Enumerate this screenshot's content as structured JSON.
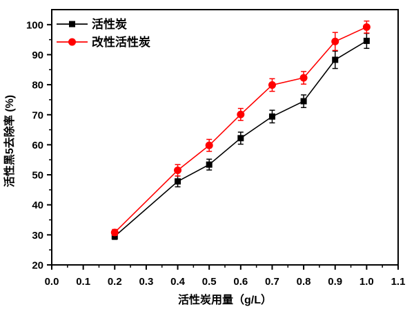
{
  "figure": {
    "background": "#ffffff",
    "frame_color": "#000000"
  },
  "chart_data": {
    "type": "line",
    "title": "",
    "xlabel": "活性炭用量（g/L）",
    "ylabel": "活性黑5去除率 (%)",
    "xlim": [
      0.0,
      1.1
    ],
    "ylim": [
      20,
      105
    ],
    "grid": false,
    "xticks": [
      0.0,
      0.1,
      0.2,
      0.3,
      0.4,
      0.5,
      0.6,
      0.7,
      0.8,
      0.9,
      1.0,
      1.1
    ],
    "xticklabels": [
      "0.0",
      "0.1",
      "0.2",
      "0.3",
      "0.4",
      "0.5",
      "0.6",
      "0.7",
      "0.8",
      "0.9",
      "1.0",
      "1.1"
    ],
    "yticks": [
      20,
      30,
      40,
      50,
      60,
      70,
      80,
      90,
      100
    ],
    "yticklabels": [
      "20",
      "30",
      "40",
      "50",
      "60",
      "70",
      "80",
      "90",
      "100"
    ],
    "x_minor_step": 0.05,
    "y_minor_step": 5,
    "x": [
      0.2,
      0.4,
      0.5,
      0.6,
      0.7,
      0.8,
      0.9,
      1.0
    ],
    "series": [
      {
        "name": "活性炭",
        "color": "#000000",
        "marker": "square",
        "values": [
          29.5,
          47.8,
          53.4,
          62.2,
          69.4,
          74.5,
          88.3,
          94.6
        ],
        "errors": [
          1.0,
          1.8,
          1.8,
          2.0,
          2.1,
          2.1,
          2.9,
          2.5
        ]
      },
      {
        "name": "改性活性炭",
        "color": "#ff0000",
        "marker": "circle",
        "values": [
          30.8,
          51.5,
          59.8,
          70.1,
          79.9,
          82.3,
          94.4,
          99.2
        ],
        "errors": [
          1.0,
          1.9,
          2.0,
          2.0,
          2.1,
          2.1,
          3.0,
          2.0
        ]
      }
    ],
    "legend": {
      "position": "top-left",
      "items": [
        "活性炭",
        "改性活性炭"
      ]
    }
  }
}
